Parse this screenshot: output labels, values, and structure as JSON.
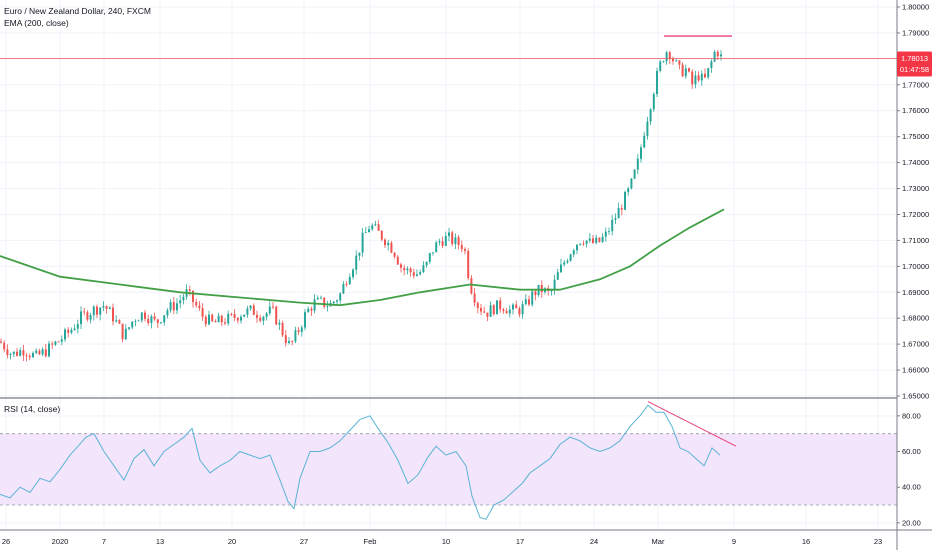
{
  "legend": {
    "symbol": "Euro / New Zealand Dollar, 240, FXCM",
    "ema": "EMA (200, close)",
    "rsi": "RSI (14, close)"
  },
  "price_tag": {
    "value": "1.78013",
    "countdown": "01:47:58",
    "color": "#f23645"
  },
  "colors": {
    "up": "#26a69a",
    "down": "#ef5350",
    "ema": "#43a047",
    "rsi": "#5ab4d6",
    "rsi_band": "#f3e5fc",
    "divergence": "#ec407a",
    "price_line": "#f7525f"
  },
  "chart_data": [
    {
      "type": "candlestick",
      "title": "Euro / New Zealand Dollar, 240, FXCM",
      "x_tick_labels": [
        "26",
        "2020",
        "7",
        "13",
        "20",
        "27",
        "Feb",
        "10",
        "17",
        "24",
        "Mar",
        "9",
        "16",
        "23"
      ],
      "y_tick_labels": [
        "1.80000",
        "1.79000",
        "1.78000",
        "1.77000",
        "1.76000",
        "1.75000",
        "1.74000",
        "1.73000",
        "1.72000",
        "1.71000",
        "1.70000",
        "1.69000",
        "1.68000",
        "1.67000",
        "1.66000",
        "1.65000"
      ],
      "ylim": [
        1.65,
        1.8
      ],
      "last_price": 1.78013,
      "resistance_level": 1.7888,
      "close_path": [
        [
          0,
          1.671
        ],
        [
          12,
          1.666
        ],
        [
          24,
          1.668
        ],
        [
          36,
          1.665
        ],
        [
          48,
          1.668
        ],
        [
          58,
          1.671
        ],
        [
          70,
          1.675
        ],
        [
          80,
          1.68
        ],
        [
          92,
          1.683
        ],
        [
          104,
          1.685
        ],
        [
          114,
          1.68
        ],
        [
          124,
          1.673
        ],
        [
          134,
          1.68
        ],
        [
          144,
          1.682
        ],
        [
          156,
          1.678
        ],
        [
          166,
          1.683
        ],
        [
          178,
          1.686
        ],
        [
          186,
          1.69
        ],
        [
          194,
          1.686
        ],
        [
          202,
          1.681
        ],
        [
          212,
          1.678
        ],
        [
          222,
          1.679
        ],
        [
          232,
          1.68
        ],
        [
          242,
          1.682
        ],
        [
          252,
          1.683
        ],
        [
          262,
          1.681
        ],
        [
          272,
          1.683
        ],
        [
          282,
          1.675
        ],
        [
          290,
          1.669
        ],
        [
          298,
          1.675
        ],
        [
          306,
          1.682
        ],
        [
          314,
          1.686
        ],
        [
          322,
          1.686
        ],
        [
          330,
          1.685
        ],
        [
          340,
          1.689
        ],
        [
          348,
          1.697
        ],
        [
          356,
          1.703
        ],
        [
          362,
          1.71
        ],
        [
          370,
          1.716
        ],
        [
          378,
          1.713
        ],
        [
          386,
          1.71
        ],
        [
          394,
          1.706
        ],
        [
          402,
          1.699
        ],
        [
          410,
          1.698
        ],
        [
          418,
          1.697
        ],
        [
          426,
          1.7
        ],
        [
          432,
          1.706
        ],
        [
          440,
          1.71
        ],
        [
          448,
          1.711
        ],
        [
          456,
          1.709
        ],
        [
          464,
          1.708
        ],
        [
          470,
          1.693
        ],
        [
          478,
          1.685
        ],
        [
          486,
          1.682
        ],
        [
          494,
          1.684
        ],
        [
          502,
          1.685
        ],
        [
          510,
          1.683
        ],
        [
          518,
          1.683
        ],
        [
          526,
          1.685
        ],
        [
          534,
          1.69
        ],
        [
          542,
          1.691
        ],
        [
          550,
          1.689
        ],
        [
          558,
          1.697
        ],
        [
          566,
          1.703
        ],
        [
          574,
          1.708
        ],
        [
          582,
          1.711
        ],
        [
          590,
          1.709
        ],
        [
          598,
          1.709
        ],
        [
          606,
          1.712
        ],
        [
          614,
          1.718
        ],
        [
          622,
          1.724
        ],
        [
          630,
          1.73
        ],
        [
          638,
          1.74
        ],
        [
          644,
          1.752
        ],
        [
          650,
          1.762
        ],
        [
          656,
          1.772
        ],
        [
          662,
          1.78
        ],
        [
          668,
          1.784
        ],
        [
          674,
          1.779
        ],
        [
          680,
          1.775
        ],
        [
          686,
          1.776
        ],
        [
          692,
          1.77
        ],
        [
          698,
          1.774
        ],
        [
          704,
          1.771
        ],
        [
          710,
          1.777
        ],
        [
          716,
          1.784
        ],
        [
          722,
          1.78
        ]
      ],
      "ema_path": [
        [
          0,
          1.704
        ],
        [
          60,
          1.696
        ],
        [
          120,
          1.693
        ],
        [
          180,
          1.69
        ],
        [
          240,
          1.688
        ],
        [
          300,
          1.686
        ],
        [
          340,
          1.685
        ],
        [
          380,
          1.687
        ],
        [
          420,
          1.69
        ],
        [
          470,
          1.693
        ],
        [
          520,
          1.691
        ],
        [
          560,
          1.691
        ],
        [
          600,
          1.695
        ],
        [
          630,
          1.7
        ],
        [
          660,
          1.708
        ],
        [
          690,
          1.715
        ],
        [
          724,
          1.722
        ]
      ]
    },
    {
      "type": "line",
      "title": "RSI (14, close)",
      "y_tick_labels": [
        "80.00",
        "60.00",
        "40.00",
        "20.00"
      ],
      "ylim": [
        16,
        90
      ],
      "band": [
        30,
        70
      ],
      "values": [
        [
          0,
          36
        ],
        [
          10,
          34
        ],
        [
          20,
          40
        ],
        [
          30,
          37
        ],
        [
          40,
          45
        ],
        [
          50,
          43
        ],
        [
          60,
          50
        ],
        [
          70,
          58
        ],
        [
          78,
          63
        ],
        [
          86,
          68
        ],
        [
          94,
          70
        ],
        [
          104,
          60
        ],
        [
          114,
          52
        ],
        [
          124,
          44
        ],
        [
          134,
          56
        ],
        [
          144,
          61
        ],
        [
          154,
          52
        ],
        [
          164,
          60
        ],
        [
          174,
          64
        ],
        [
          184,
          68
        ],
        [
          192,
          73
        ],
        [
          200,
          55
        ],
        [
          210,
          48
        ],
        [
          220,
          52
        ],
        [
          230,
          55
        ],
        [
          240,
          60
        ],
        [
          250,
          58
        ],
        [
          260,
          56
        ],
        [
          270,
          58
        ],
        [
          280,
          44
        ],
        [
          288,
          32
        ],
        [
          294,
          28
        ],
        [
          300,
          45
        ],
        [
          310,
          60
        ],
        [
          320,
          60
        ],
        [
          330,
          62
        ],
        [
          340,
          66
        ],
        [
          350,
          72
        ],
        [
          360,
          78
        ],
        [
          370,
          80
        ],
        [
          378,
          73
        ],
        [
          388,
          65
        ],
        [
          398,
          55
        ],
        [
          408,
          42
        ],
        [
          418,
          47
        ],
        [
          428,
          57
        ],
        [
          436,
          63
        ],
        [
          446,
          58
        ],
        [
          456,
          60
        ],
        [
          466,
          52
        ],
        [
          472,
          35
        ],
        [
          480,
          23
        ],
        [
          486,
          22
        ],
        [
          494,
          30
        ],
        [
          504,
          33
        ],
        [
          514,
          38
        ],
        [
          522,
          42
        ],
        [
          530,
          48
        ],
        [
          540,
          52
        ],
        [
          550,
          56
        ],
        [
          560,
          64
        ],
        [
          570,
          68
        ],
        [
          580,
          66
        ],
        [
          590,
          62
        ],
        [
          600,
          60
        ],
        [
          610,
          62
        ],
        [
          620,
          66
        ],
        [
          630,
          74
        ],
        [
          640,
          80
        ],
        [
          648,
          86
        ],
        [
          656,
          82
        ],
        [
          664,
          82
        ],
        [
          672,
          74
        ],
        [
          680,
          62
        ],
        [
          688,
          60
        ],
        [
          696,
          56
        ],
        [
          704,
          52
        ],
        [
          712,
          62
        ],
        [
          720,
          58
        ]
      ],
      "divergence_line": [
        [
          648,
          88
        ],
        [
          736,
          63
        ]
      ]
    }
  ]
}
